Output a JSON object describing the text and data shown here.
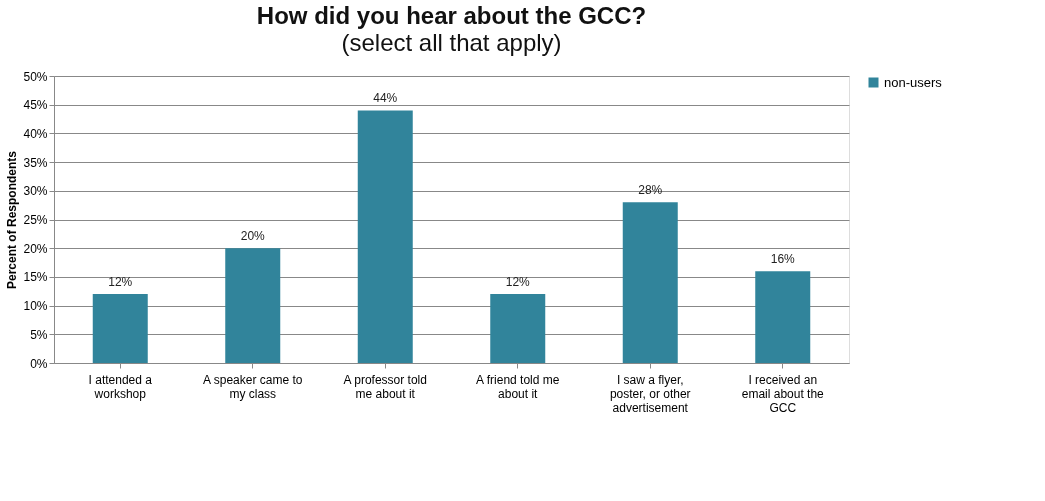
{
  "chart_data": {
    "type": "bar",
    "title": "How did you hear about the GCC?",
    "subtitle": "(select all that apply)",
    "ylabel": "Percent of Respondents",
    "categories": [
      "I attended a workshop",
      "A speaker came to my class",
      "A professor told me about it",
      "A friend told me about it",
      "I saw  a flyer, poster, or other advertisement",
      "I received an email about the GCC"
    ],
    "series": [
      {
        "name": "non-users",
        "color": "#31849b",
        "values": [
          12,
          20,
          44,
          12,
          28,
          16
        ],
        "value_labels": [
          "12%",
          "20%",
          "44%",
          "12%",
          "28%",
          "16%"
        ]
      }
    ],
    "ylim": [
      0,
      50
    ],
    "yticks": [
      {
        "value": 0,
        "label": "0%"
      },
      {
        "value": 5,
        "label": "5%"
      },
      {
        "value": 10,
        "label": "10%"
      },
      {
        "value": 15,
        "label": "15%"
      },
      {
        "value": 20,
        "label": "20%"
      },
      {
        "value": 25,
        "label": "25%"
      },
      {
        "value": 30,
        "label": "30%"
      },
      {
        "value": 35,
        "label": "35%"
      },
      {
        "value": 40,
        "label": "40%"
      },
      {
        "value": 45,
        "label": "45%"
      },
      {
        "value": 50,
        "label": "50%"
      }
    ],
    "grid": "y",
    "legend": "right"
  }
}
